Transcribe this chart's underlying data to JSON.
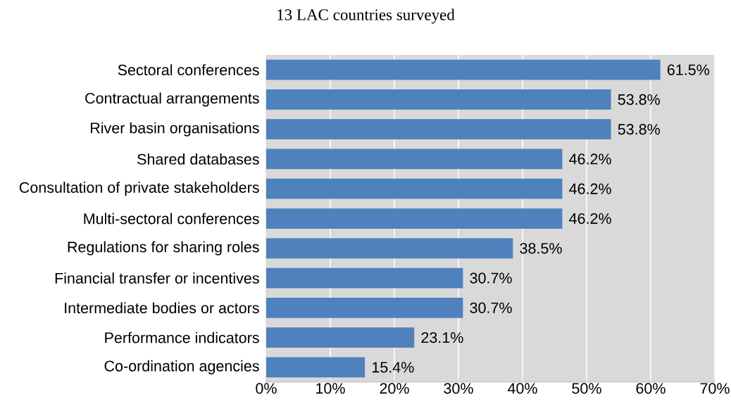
{
  "chart_data": {
    "type": "bar",
    "orientation": "horizontal",
    "title": "13 LAC countries surveyed",
    "categories": [
      "Sectoral conferences",
      "Contractual arrangements",
      "River basin organisations",
      "Shared databases",
      "Consultation of private stakeholders",
      "Multi-sectoral conferences",
      "Regulations for sharing roles",
      "Financial transfer or incentives",
      "Intermediate bodies or actors",
      "Performance indicators",
      "Co-ordination agencies"
    ],
    "values": [
      61.5,
      53.8,
      53.8,
      46.2,
      46.2,
      46.2,
      38.5,
      30.7,
      30.7,
      23.1,
      15.4
    ],
    "value_labels": [
      "61.5%",
      "53.8%",
      "53.8%",
      "46.2%",
      "46.2%",
      "46.2%",
      "38.5%",
      "30.7%",
      "30.7%",
      "23.1%",
      "15.4%"
    ],
    "color": "#4f81bd",
    "xlim": [
      0,
      70
    ],
    "xticks": [
      {
        "value": 0,
        "label": "0%"
      },
      {
        "value": 10,
        "label": "10%"
      },
      {
        "value": 20,
        "label": "20%"
      },
      {
        "value": 30,
        "label": "30%"
      },
      {
        "value": 40,
        "label": "40%"
      },
      {
        "value": 50,
        "label": "50%"
      },
      {
        "value": 60,
        "label": "60%"
      },
      {
        "value": 70,
        "label": "70%"
      }
    ],
    "grid": "x"
  }
}
